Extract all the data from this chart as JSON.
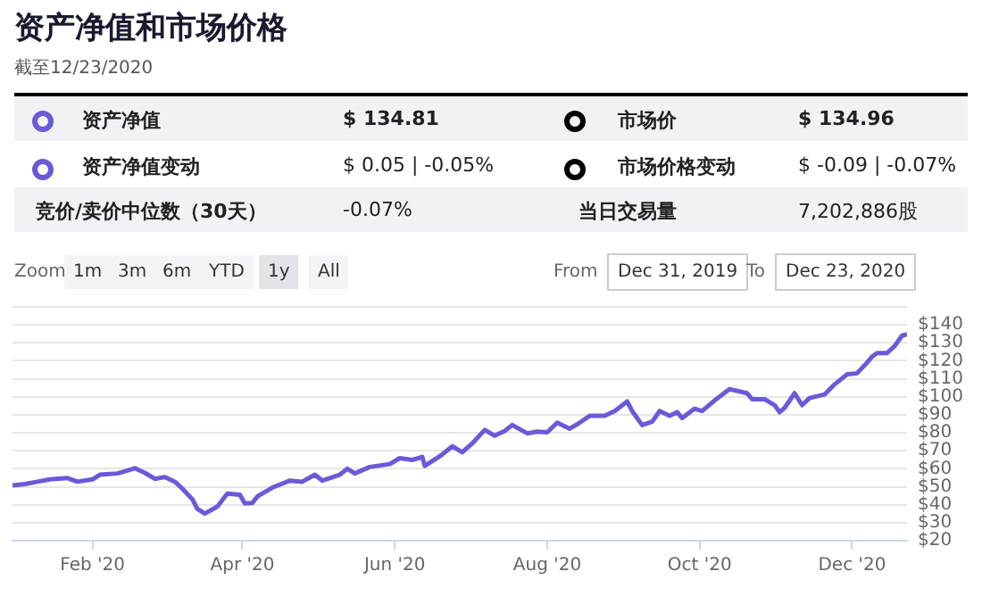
{
  "chart_data": {
    "type": "line",
    "title": "资产净值和市场价格",
    "subtitle": "截至12/23/2020",
    "annotations": [
      "资产净值",
      "$ 134.81",
      "市场价",
      "$ 134.96",
      "资产净值变动",
      "$ 0.05 | -0.05%",
      "市场价格变动",
      "$ -0.09 | -0.07%",
      "竞价/卖价中位数（30天）",
      "-0.07%",
      "当日交易量",
      "7,202,886股",
      "Zoom",
      "1m",
      "3m",
      "6m",
      "YTD",
      "1y",
      "All",
      "From",
      "Dec 31, 2019",
      "To",
      "Dec 23, 2020"
    ],
    "x": [
      "2019-12-31",
      "2020-01-05",
      "2020-01-10",
      "2020-01-15",
      "2020-01-22",
      "2020-01-26",
      "2020-02-01",
      "2020-02-04",
      "2020-02-11",
      "2020-02-18",
      "2020-02-22",
      "2020-02-26",
      "2020-03-01",
      "2020-03-05",
      "2020-03-08",
      "2020-03-12",
      "2020-03-14",
      "2020-03-17",
      "2020-03-22",
      "2020-03-26",
      "2020-03-31",
      "2020-04-02",
      "2020-04-05",
      "2020-04-07",
      "2020-04-13",
      "2020-04-20",
      "2020-04-25",
      "2020-04-30",
      "2020-05-03",
      "2020-05-10",
      "2020-05-13",
      "2020-05-16",
      "2020-05-22",
      "2020-05-30",
      "2020-06-03",
      "2020-06-08",
      "2020-06-12",
      "2020-06-13",
      "2020-06-19",
      "2020-06-24",
      "2020-06-28",
      "2020-07-02",
      "2020-07-07",
      "2020-07-11",
      "2020-07-15",
      "2020-07-18",
      "2020-07-24",
      "2020-07-28",
      "2020-08-01",
      "2020-08-05",
      "2020-08-10",
      "2020-08-14",
      "2020-08-18",
      "2020-08-24",
      "2020-08-28",
      "2020-09-02",
      "2020-09-04",
      "2020-09-08",
      "2020-09-12",
      "2020-09-15",
      "2020-09-19",
      "2020-09-22",
      "2020-09-24",
      "2020-09-29",
      "2020-10-02",
      "2020-10-07",
      "2020-10-13",
      "2020-10-20",
      "2020-10-22",
      "2020-10-27",
      "2020-10-31",
      "2020-11-02",
      "2020-11-04",
      "2020-11-08",
      "2020-11-11",
      "2020-11-14",
      "2020-11-20",
      "2020-11-24",
      "2020-11-29",
      "2020-12-03",
      "2020-12-07",
      "2020-12-09",
      "2020-12-11",
      "2020-12-15",
      "2020-12-18",
      "2020-12-21",
      "2020-12-23"
    ],
    "series": [
      {
        "color": "#6a5ad8",
        "values": [
          50.8,
          51.5,
          52.8,
          54.1,
          54.8,
          52.8,
          54.1,
          56.7,
          57.4,
          60.3,
          57.7,
          54.4,
          55.4,
          52.8,
          48.9,
          43,
          37.7,
          35.1,
          39,
          46.2,
          45.6,
          40.7,
          41,
          44.6,
          49.5,
          53.4,
          52.8,
          56.7,
          53.4,
          56.7,
          60,
          57.4,
          61,
          62.6,
          65.9,
          64.9,
          66.6,
          61.6,
          66.9,
          72.5,
          69.2,
          74.1,
          81.6,
          78.4,
          81,
          84.3,
          79.7,
          80.7,
          80.3,
          85.6,
          82.3,
          85.6,
          89.5,
          89.5,
          92.1,
          97.4,
          92.1,
          84.3,
          86.2,
          92.1,
          89.5,
          91.5,
          88.2,
          93.4,
          92.1,
          98,
          104.3,
          102,
          98.7,
          98.7,
          95.4,
          91.5,
          93.8,
          102,
          95.4,
          99.3,
          101.3,
          106.9,
          112.5,
          113.1,
          119,
          122.3,
          124.3,
          124.3,
          128.2,
          134,
          134.8
        ]
      }
    ],
    "xlim": [
      "2019-12-31",
      "2020-12-23"
    ],
    "xticks": [
      {
        "value": "2020-02-01",
        "label": "Feb '20"
      },
      {
        "value": "2020-04-01",
        "label": "Apr '20"
      },
      {
        "value": "2020-06-01",
        "label": "Jun '20"
      },
      {
        "value": "2020-08-01",
        "label": "Aug '20"
      },
      {
        "value": "2020-10-01",
        "label": "Oct '20"
      },
      {
        "value": "2020-12-01",
        "label": "Dec '20"
      }
    ],
    "ylim": [
      20,
      150
    ],
    "yticks": [
      {
        "value": 20,
        "label": "$20"
      },
      {
        "value": 30,
        "label": "$30"
      },
      {
        "value": 40,
        "label": "$40"
      },
      {
        "value": 50,
        "label": "$50"
      },
      {
        "value": 60,
        "label": "$60"
      },
      {
        "value": 70,
        "label": "$70"
      },
      {
        "value": 80,
        "label": "$80"
      },
      {
        "value": 90,
        "label": "$90"
      },
      {
        "value": 100,
        "label": "$100"
      },
      {
        "value": 110,
        "label": "$110"
      },
      {
        "value": 120,
        "label": "$120"
      },
      {
        "value": 130,
        "label": "$130"
      },
      {
        "value": 140,
        "label": "$140"
      },
      {
        "value": 150,
        "label": null
      }
    ],
    "grid": "y",
    "marker": "none",
    "line_style": "solid"
  }
}
